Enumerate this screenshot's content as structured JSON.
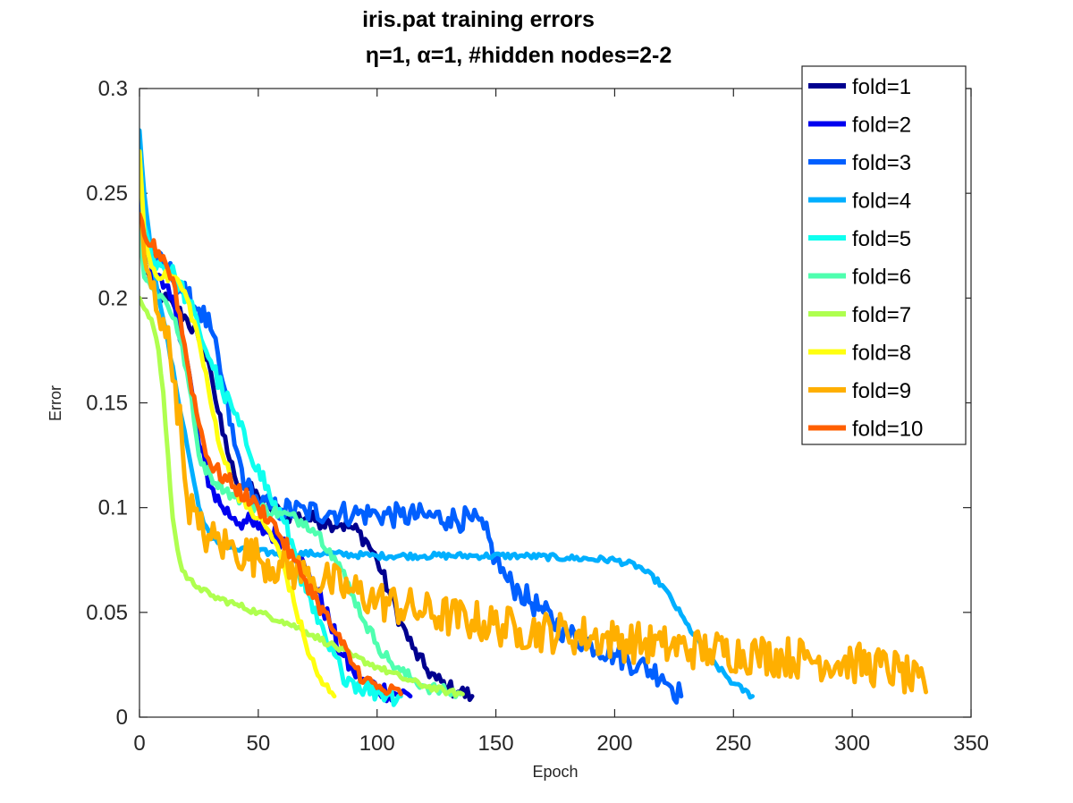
{
  "chart_data": {
    "type": "line",
    "title": "iris.pat training errors",
    "subtitle": "η=1,   α=1, #hidden nodes=2-2",
    "xlabel": "Epoch",
    "ylabel": "Error",
    "xlim": [
      0,
      350
    ],
    "ylim": [
      0,
      0.3
    ],
    "xticks": [
      0,
      50,
      100,
      150,
      200,
      250,
      300,
      350
    ],
    "xtick_labels": [
      "0",
      "50",
      "100",
      "150",
      "200",
      "250",
      "300",
      "350"
    ],
    "yticks": [
      0,
      0.05,
      0.1,
      0.15,
      0.2,
      0.25,
      0.3
    ],
    "ytick_labels": [
      "0",
      "0.05",
      "0.1",
      "0.15",
      "0.2",
      "0.25",
      "0.3"
    ],
    "grid": false,
    "legend_position": "top-right",
    "series": [
      {
        "name": "fold=1",
        "color": "#00008F",
        "noise": 0.004,
        "x": [
          0,
          2,
          5,
          10,
          15,
          20,
          25,
          30,
          35,
          40,
          45,
          50,
          55,
          60,
          65,
          70,
          75,
          80,
          85,
          90,
          95,
          100,
          105,
          110,
          115,
          120,
          125,
          130,
          135,
          140
        ],
        "y": [
          0.245,
          0.22,
          0.205,
          0.2,
          0.195,
          0.19,
          0.18,
          0.165,
          0.135,
          0.115,
          0.11,
          0.105,
          0.1,
          0.097,
          0.096,
          0.095,
          0.094,
          0.093,
          0.092,
          0.09,
          0.085,
          0.075,
          0.06,
          0.045,
          0.033,
          0.024,
          0.018,
          0.014,
          0.012,
          0.01
        ]
      },
      {
        "name": "fold=2",
        "color": "#0000EF",
        "noise": 0.005,
        "x": [
          0,
          2,
          5,
          10,
          15,
          20,
          25,
          30,
          35,
          40,
          45,
          50,
          55,
          60,
          65,
          70,
          75,
          80,
          85,
          90,
          95,
          100,
          105,
          110,
          114
        ],
        "y": [
          0.25,
          0.23,
          0.215,
          0.205,
          0.195,
          0.17,
          0.13,
          0.11,
          0.1,
          0.095,
          0.093,
          0.09,
          0.088,
          0.085,
          0.08,
          0.07,
          0.06,
          0.045,
          0.03,
          0.022,
          0.017,
          0.014,
          0.012,
          0.011,
          0.01
        ]
      },
      {
        "name": "fold=3",
        "color": "#005FFF",
        "noise": 0.006,
        "x": [
          0,
          2,
          5,
          10,
          15,
          20,
          25,
          30,
          35,
          40,
          45,
          50,
          55,
          60,
          70,
          80,
          90,
          100,
          110,
          120,
          130,
          140,
          145,
          150,
          155,
          160,
          170,
          180,
          190,
          200,
          210,
          220,
          228
        ],
        "y": [
          0.26,
          0.23,
          0.22,
          0.215,
          0.21,
          0.2,
          0.195,
          0.185,
          0.16,
          0.13,
          0.11,
          0.102,
          0.1,
          0.099,
          0.098,
          0.098,
          0.097,
          0.097,
          0.096,
          0.096,
          0.095,
          0.094,
          0.09,
          0.075,
          0.065,
          0.06,
          0.05,
          0.04,
          0.035,
          0.03,
          0.025,
          0.02,
          0.01
        ]
      },
      {
        "name": "fold=4",
        "color": "#00AFFF",
        "noise": 0.0015,
        "x": [
          0,
          2,
          5,
          10,
          15,
          20,
          25,
          30,
          40,
          50,
          60,
          80,
          100,
          120,
          140,
          160,
          180,
          200,
          210,
          220,
          230,
          240,
          250,
          258
        ],
        "y": [
          0.28,
          0.25,
          0.22,
          0.19,
          0.16,
          0.13,
          0.1,
          0.085,
          0.08,
          0.079,
          0.078,
          0.078,
          0.077,
          0.077,
          0.077,
          0.077,
          0.076,
          0.075,
          0.072,
          0.063,
          0.045,
          0.028,
          0.016,
          0.01
        ]
      },
      {
        "name": "fold=5",
        "color": "#0FFFEF",
        "noise": 0.005,
        "x": [
          0,
          2,
          5,
          10,
          15,
          20,
          25,
          30,
          35,
          40,
          45,
          50,
          55,
          60,
          65,
          70,
          75,
          80,
          85,
          90,
          95,
          100,
          105,
          110
        ],
        "y": [
          0.27,
          0.235,
          0.22,
          0.215,
          0.21,
          0.2,
          0.185,
          0.17,
          0.155,
          0.145,
          0.13,
          0.12,
          0.105,
          0.095,
          0.08,
          0.06,
          0.045,
          0.032,
          0.022,
          0.017,
          0.014,
          0.012,
          0.011,
          0.01
        ]
      },
      {
        "name": "fold=6",
        "color": "#4FFFAF",
        "noise": 0.003,
        "x": [
          0,
          2,
          5,
          10,
          15,
          20,
          25,
          30,
          40,
          50,
          60,
          70,
          75,
          80,
          85,
          90,
          95,
          100,
          105,
          110,
          115,
          120,
          125,
          130,
          135
        ],
        "y": [
          0.235,
          0.21,
          0.205,
          0.2,
          0.19,
          0.165,
          0.125,
          0.115,
          0.105,
          0.1,
          0.097,
          0.093,
          0.088,
          0.08,
          0.07,
          0.058,
          0.045,
          0.035,
          0.027,
          0.022,
          0.018,
          0.015,
          0.013,
          0.012,
          0.011
        ]
      },
      {
        "name": "fold=7",
        "color": "#AFFF4F",
        "noise": 0.0015,
        "x": [
          0,
          2,
          5,
          8,
          10,
          12,
          14,
          16,
          18,
          20,
          25,
          30,
          40,
          50,
          60,
          70,
          80,
          90,
          100,
          110,
          120,
          130,
          136
        ],
        "y": [
          0.2,
          0.195,
          0.19,
          0.175,
          0.155,
          0.125,
          0.095,
          0.08,
          0.07,
          0.066,
          0.062,
          0.058,
          0.054,
          0.05,
          0.046,
          0.041,
          0.035,
          0.029,
          0.024,
          0.019,
          0.015,
          0.012,
          0.011
        ]
      },
      {
        "name": "fold=8",
        "color": "#FFFF0F",
        "noise": 0.003,
        "x": [
          0,
          2,
          5,
          10,
          15,
          20,
          25,
          30,
          35,
          40,
          45,
          50,
          55,
          60,
          65,
          70,
          75,
          80,
          82
        ],
        "y": [
          0.27,
          0.23,
          0.215,
          0.21,
          0.21,
          0.2,
          0.18,
          0.15,
          0.125,
          0.11,
          0.1,
          0.095,
          0.088,
          0.075,
          0.055,
          0.035,
          0.02,
          0.012,
          0.01
        ]
      },
      {
        "name": "fold=9",
        "color": "#FFAF00",
        "noise": 0.01,
        "x": [
          0,
          2,
          5,
          10,
          15,
          18,
          20,
          25,
          30,
          40,
          50,
          60,
          70,
          80,
          90,
          100,
          120,
          140,
          160,
          180,
          200,
          220,
          240,
          260,
          280,
          300,
          320,
          331
        ],
        "y": [
          0.24,
          0.22,
          0.205,
          0.19,
          0.16,
          0.13,
          0.105,
          0.09,
          0.085,
          0.08,
          0.076,
          0.072,
          0.068,
          0.064,
          0.06,
          0.056,
          0.05,
          0.046,
          0.042,
          0.04,
          0.037,
          0.034,
          0.032,
          0.03,
          0.028,
          0.026,
          0.022,
          0.012
        ]
      },
      {
        "name": "fold=10",
        "color": "#FF5F00",
        "noise": 0.004,
        "x": [
          0,
          2,
          5,
          10,
          15,
          20,
          25,
          30,
          40,
          50,
          55,
          60,
          65,
          70,
          75,
          80,
          85,
          90,
          95,
          100,
          105,
          110
        ],
        "y": [
          0.24,
          0.23,
          0.225,
          0.22,
          0.205,
          0.17,
          0.14,
          0.12,
          0.11,
          0.1,
          0.095,
          0.085,
          0.075,
          0.065,
          0.055,
          0.045,
          0.035,
          0.025,
          0.018,
          0.014,
          0.012,
          0.011
        ]
      }
    ]
  }
}
